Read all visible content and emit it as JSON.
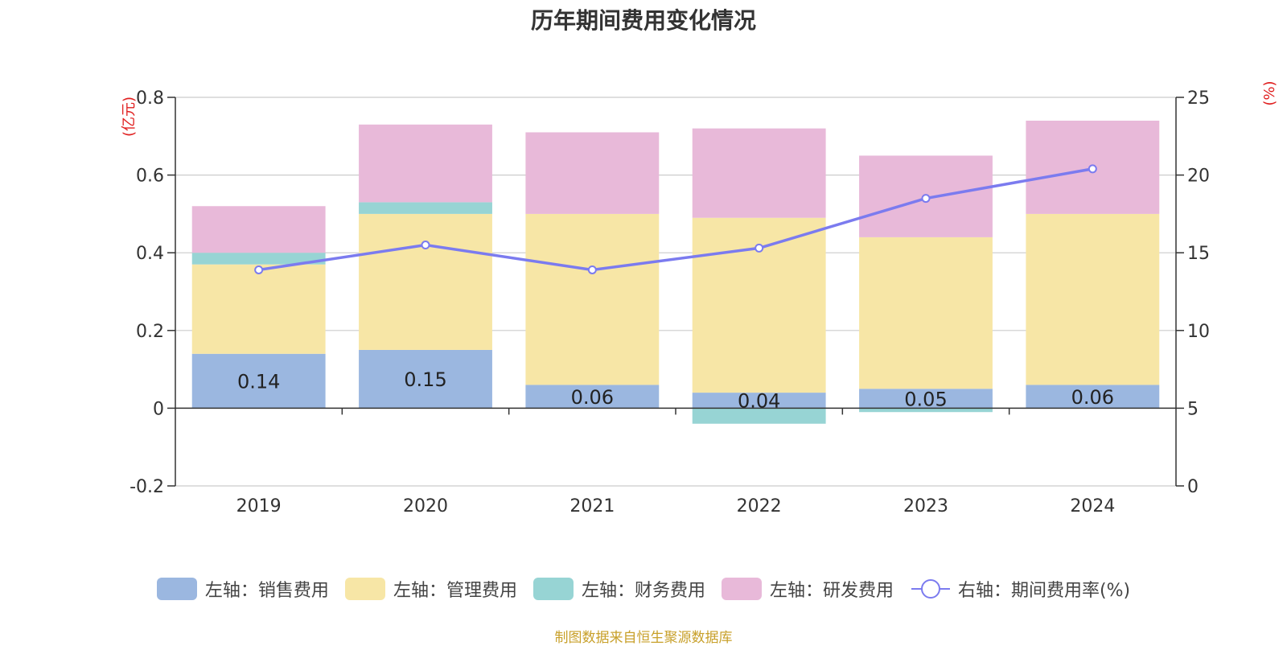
{
  "chart_data": {
    "type": "bar",
    "stacked": true,
    "title": "历年期间费用变化情况",
    "categories": [
      "2019",
      "2020",
      "2021",
      "2022",
      "2023",
      "2024"
    ],
    "left_axis": {
      "unit_label": "(亿元)",
      "ylim": [
        -0.2,
        0.8
      ],
      "ticks": [
        -0.2,
        0,
        0.2,
        0.4,
        0.6,
        0.8
      ],
      "tick_labels": [
        "-0.2",
        "0",
        "0.2",
        "0.4",
        "0.6",
        "0.8"
      ]
    },
    "right_axis": {
      "unit_label": "(%)",
      "ylim": [
        0,
        25
      ],
      "ticks": [
        0,
        5,
        10,
        15,
        20,
        25
      ],
      "tick_labels": [
        "0",
        "5",
        "10",
        "15",
        "20",
        "25"
      ]
    },
    "series": [
      {
        "name": "左轴：销售费用",
        "kind": "bar",
        "axis": "left",
        "color": "#9bb7e0",
        "values": [
          0.14,
          0.15,
          0.06,
          0.04,
          0.05,
          0.06
        ],
        "data_labels": [
          "0.14",
          "0.15",
          "0.06",
          "0.04",
          "0.05",
          "0.06"
        ]
      },
      {
        "name": "左轴：管理费用",
        "kind": "bar",
        "axis": "left",
        "color": "#f7e6a6",
        "values": [
          0.23,
          0.35,
          0.44,
          0.45,
          0.39,
          0.44
        ]
      },
      {
        "name": "左轴：财务费用",
        "kind": "bar",
        "axis": "left",
        "color": "#97d4d4",
        "values": [
          0.03,
          0.03,
          0.0,
          -0.04,
          -0.01,
          0.0
        ]
      },
      {
        "name": "左轴：研发费用",
        "kind": "bar",
        "axis": "left",
        "color": "#e8b9d9",
        "values": [
          0.12,
          0.2,
          0.21,
          0.23,
          0.21,
          0.24
        ]
      },
      {
        "name": "右轴：期间费用率(%)",
        "kind": "line",
        "axis": "right",
        "color": "#7b7bef",
        "values": [
          13.9,
          15.5,
          13.9,
          15.3,
          18.5,
          20.4
        ]
      }
    ],
    "grid": true,
    "legend_position": "bottom"
  },
  "source_text": "制图数据来自恒生聚源数据库"
}
